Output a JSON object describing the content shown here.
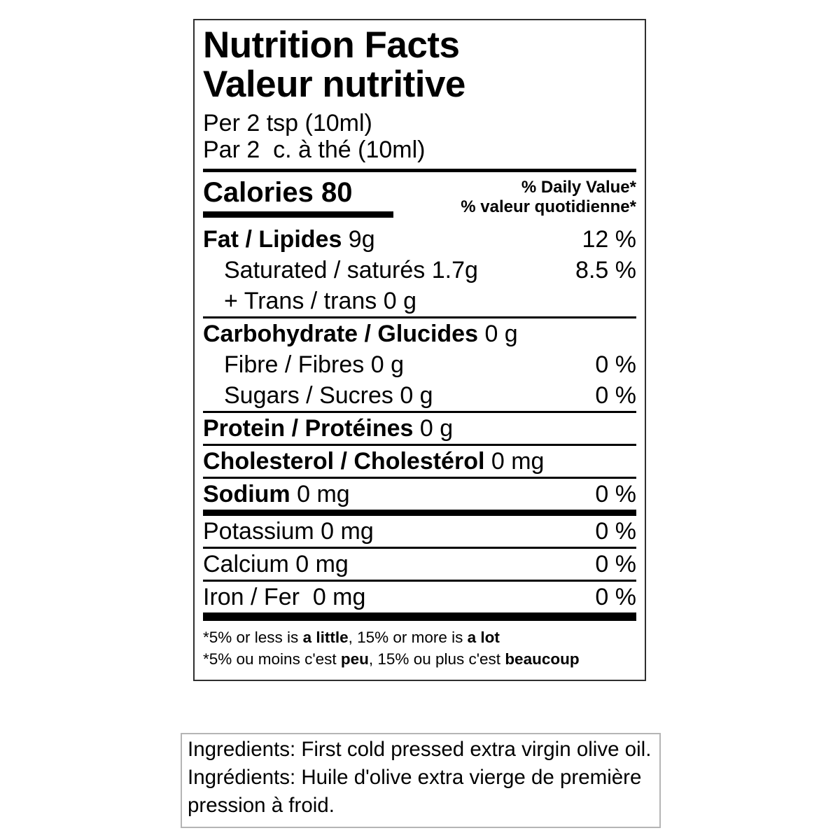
{
  "colors": {
    "text": "#000000",
    "label_border": "#2f2f2f",
    "ingredients_border": "#b5b5b5",
    "rule": "#000000",
    "background": "#ffffff"
  },
  "nutrition_label": {
    "title_en": "Nutrition Facts",
    "title_fr": "Valeur nutritive",
    "serving_en": "Per 2 tsp (10ml)",
    "serving_fr": "Par 2  c. à thé (10ml)",
    "calories_label": "Calories",
    "calories_value": "80",
    "calories_text": "Calories 80",
    "daily_value_en": "% Daily Value*",
    "daily_value_fr": "% valeur quotidienne*",
    "rows": [
      {
        "bold": "Fat / Lipides",
        "regular": " 9g",
        "percent": "12 %"
      },
      {
        "bold": "",
        "regular": "Saturated / saturés 1.7g",
        "percent": "8.5 %"
      },
      {
        "bold": "",
        "regular": "+ Trans / trans 0 g",
        "percent": ""
      },
      {
        "bold": "Carbohydrate / Glucides",
        "regular": " 0 g",
        "percent": ""
      },
      {
        "bold": "",
        "regular": "Fibre / Fibres 0 g",
        "percent": "0 %"
      },
      {
        "bold": "",
        "regular": "Sugars / Sucres 0 g",
        "percent": "0 %"
      },
      {
        "bold": "Protein / Protéines",
        "regular": " 0 g",
        "percent": ""
      },
      {
        "bold": "Cholesterol / Cholestérol",
        "regular": " 0 mg",
        "percent": ""
      },
      {
        "bold": "Sodium",
        "regular": " 0 mg",
        "percent": "0 %"
      },
      {
        "bold": "",
        "regular": "Potassium 0 mg",
        "percent": "0 %"
      },
      {
        "bold": "",
        "regular": "Calcium 0 mg",
        "percent": "0 %"
      },
      {
        "bold": "",
        "regular": "Iron / Fer  0 mg",
        "percent": "0 %"
      }
    ],
    "footnote_en": {
      "pre": "*5% or less is ",
      "bold1": "a little",
      "mid": ", 15% or more is ",
      "bold2": "a lot"
    },
    "footnote_fr": {
      "pre": "*5% ou moins c'est ",
      "bold1": "peu",
      "mid": ", 15% ou plus c'est ",
      "bold2": "beaucoup"
    }
  },
  "ingredients": {
    "text_en": "Ingredients: First cold pressed extra virgin olive oil.",
    "text_fr": "Ingrédients: Huile d'olive extra vierge de première pression à froid."
  }
}
